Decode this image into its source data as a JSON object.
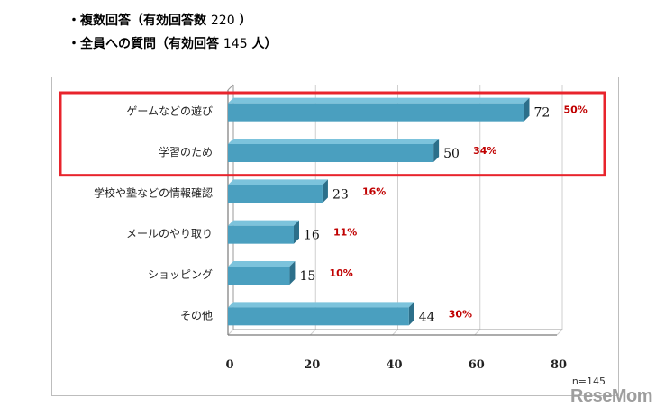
{
  "notes": {
    "line1_label": "・複数回答（有効回答数",
    "line1_count": "220",
    "line1_close": "）",
    "line2_label": "・全員への質問（有効回答",
    "line2_count": "145",
    "line2_unit": "人）"
  },
  "colors": {
    "bar_front": "#4a9fbf",
    "bar_top": "#7cc3dc",
    "bar_side": "#2c6f8a",
    "highlight_box": "#e8242c",
    "percent_text": "#c00000",
    "grid": "#cfcfcf"
  },
  "watermark": "ReseMom",
  "chart_data": {
    "type": "bar",
    "orientation": "horizontal",
    "title": "",
    "xlabel": "",
    "ylabel": "",
    "xlim": [
      0,
      80
    ],
    "x_ticks": [
      0,
      20,
      40,
      60,
      80
    ],
    "n_label": "n=145",
    "grid": true,
    "categories": [
      "ゲームなどの遊び",
      "学習のため",
      "学校や塾などの情報確認",
      "メールのやり取り",
      "ショッピング",
      "その他"
    ],
    "values": [
      72,
      50,
      23,
      16,
      15,
      44
    ],
    "percent_labels": [
      "50%",
      "34%",
      "16%",
      "11%",
      "10%",
      "30%"
    ],
    "highlighted": [
      0,
      1
    ]
  }
}
